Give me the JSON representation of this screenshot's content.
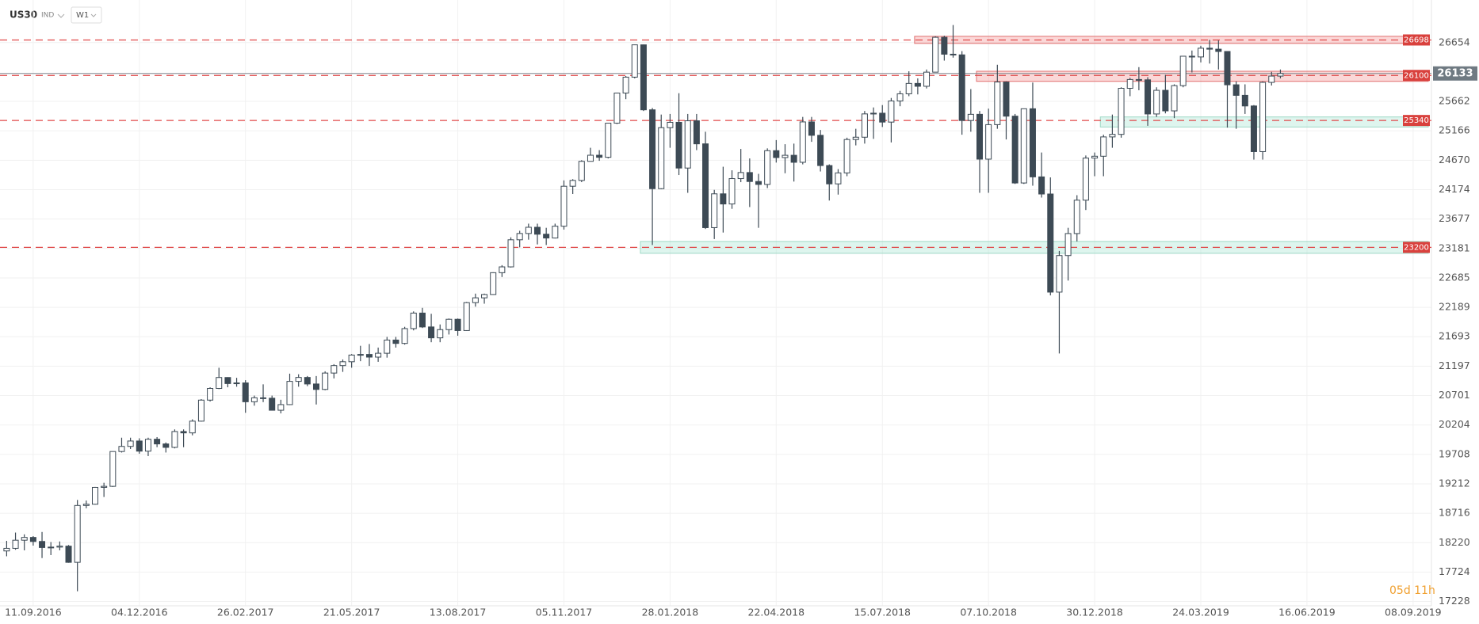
{
  "header": {
    "symbol": "US30",
    "market": "IND",
    "timeframe": "W1",
    "timer": "05d 11h"
  },
  "chart_data": {
    "type": "candlestick",
    "categories": [
      null,
      null,
      null,
      "11.09.2016",
      null,
      null,
      null,
      null,
      null,
      null,
      null,
      null,
      null,
      null,
      null,
      "04.12.2016",
      null,
      null,
      null,
      null,
      null,
      null,
      null,
      null,
      null,
      null,
      null,
      "26.02.2017",
      null,
      null,
      null,
      null,
      null,
      null,
      null,
      null,
      null,
      null,
      null,
      "21.05.2017",
      null,
      null,
      null,
      null,
      null,
      null,
      null,
      null,
      null,
      null,
      null,
      "13.08.2017",
      null,
      null,
      null,
      null,
      null,
      null,
      null,
      null,
      null,
      null,
      null,
      "05.11.2017",
      null,
      null,
      null,
      null,
      null,
      null,
      null,
      null,
      null,
      null,
      null,
      "28.01.2018",
      null,
      null,
      null,
      null,
      null,
      null,
      null,
      null,
      null,
      null,
      null,
      "22.04.2018",
      null,
      null,
      null,
      null,
      null,
      null,
      null,
      null,
      null,
      null,
      null,
      "15.07.2018",
      null,
      null,
      null,
      null,
      null,
      null,
      null,
      null,
      null,
      null,
      null,
      "07.10.2018",
      null,
      null,
      null,
      null,
      null,
      null,
      null,
      null,
      null,
      null,
      null,
      "30.12.2018",
      null,
      null,
      null,
      null,
      null,
      null,
      null,
      null,
      null,
      null,
      null,
      "24.03.2019",
      null,
      null,
      null,
      null,
      null,
      null,
      null,
      null,
      null,
      null,
      null,
      "16.06.2019",
      null,
      null,
      null,
      null,
      null,
      null,
      null,
      null,
      null,
      null,
      null,
      "08.09.2019"
    ],
    "ohlc": [
      [
        18080,
        18250,
        17990,
        18124
      ],
      [
        18124,
        18390,
        18100,
        18261
      ],
      [
        18261,
        18360,
        18090,
        18308
      ],
      [
        18308,
        18330,
        18170,
        18240
      ],
      [
        18240,
        18400,
        17960,
        18138
      ],
      [
        18138,
        18230,
        18010,
        18145
      ],
      [
        18145,
        18240,
        18090,
        18161
      ],
      [
        18161,
        18180,
        17880,
        17888
      ],
      [
        17888,
        18940,
        17400,
        18847
      ],
      [
        18847,
        18930,
        18800,
        18868
      ],
      [
        18868,
        19160,
        18860,
        19152
      ],
      [
        19152,
        19230,
        18990,
        19170
      ],
      [
        19170,
        19760,
        19160,
        19757
      ],
      [
        19757,
        19990,
        19740,
        19843
      ],
      [
        19843,
        19990,
        19800,
        19934
      ],
      [
        19934,
        19980,
        19720,
        19763
      ],
      [
        19763,
        19990,
        19680,
        19964
      ],
      [
        19964,
        20000,
        19830,
        19885
      ],
      [
        19885,
        19910,
        19740,
        19827
      ],
      [
        19827,
        20130,
        19810,
        20094
      ],
      [
        20094,
        20130,
        19830,
        20071
      ],
      [
        20071,
        20300,
        20030,
        20269
      ],
      [
        20269,
        20640,
        20260,
        20624
      ],
      [
        20624,
        20840,
        20600,
        20821
      ],
      [
        20821,
        21170,
        20810,
        21005
      ],
      [
        21005,
        21010,
        20840,
        20903
      ],
      [
        20903,
        21000,
        20850,
        20914
      ],
      [
        20914,
        20960,
        20410,
        20596
      ],
      [
        20596,
        20700,
        20530,
        20663
      ],
      [
        20663,
        20890,
        20590,
        20656
      ],
      [
        20656,
        20700,
        20450,
        20453
      ],
      [
        20453,
        20630,
        20400,
        20548
      ],
      [
        20548,
        21070,
        20540,
        20940
      ],
      [
        20940,
        21060,
        20850,
        21006
      ],
      [
        21006,
        21030,
        20860,
        20896
      ],
      [
        20896,
        21030,
        20550,
        20804
      ],
      [
        20804,
        21110,
        20790,
        21080
      ],
      [
        21080,
        21230,
        20990,
        21206
      ],
      [
        21206,
        21310,
        21100,
        21271
      ],
      [
        21271,
        21400,
        21170,
        21384
      ],
      [
        21384,
        21540,
        21280,
        21394
      ],
      [
        21394,
        21570,
        21200,
        21349
      ],
      [
        21349,
        21510,
        21270,
        21414
      ],
      [
        21414,
        21690,
        21340,
        21637
      ],
      [
        21637,
        21690,
        21510,
        21580
      ],
      [
        21580,
        21860,
        21560,
        21830
      ],
      [
        21830,
        22120,
        21800,
        22092
      ],
      [
        22092,
        22180,
        21840,
        21858
      ],
      [
        21858,
        22080,
        21600,
        21674
      ],
      [
        21674,
        21900,
        21600,
        21813
      ],
      [
        21813,
        22000,
        21730,
        21987
      ],
      [
        21987,
        22000,
        21710,
        21797
      ],
      [
        21797,
        22280,
        21790,
        22268
      ],
      [
        22268,
        22420,
        22200,
        22349
      ],
      [
        22349,
        22420,
        22250,
        22405
      ],
      [
        22405,
        22780,
        22400,
        22773
      ],
      [
        22773,
        22900,
        22700,
        22871
      ],
      [
        22871,
        23370,
        22860,
        23328
      ],
      [
        23328,
        23480,
        23200,
        23434
      ],
      [
        23434,
        23600,
        23330,
        23539
      ],
      [
        23539,
        23600,
        23250,
        23422
      ],
      [
        23422,
        23530,
        23240,
        23358
      ],
      [
        23358,
        23600,
        23350,
        23557
      ],
      [
        23557,
        24330,
        23500,
        24231
      ],
      [
        24231,
        24350,
        24100,
        24329
      ],
      [
        24329,
        24670,
        24300,
        24651
      ],
      [
        24651,
        24880,
        24650,
        24754
      ],
      [
        24754,
        24840,
        24660,
        24719
      ],
      [
        24719,
        25300,
        24700,
        25295
      ],
      [
        25295,
        25810,
        25280,
        25803
      ],
      [
        25803,
        26090,
        25700,
        26071
      ],
      [
        26071,
        26620,
        26050,
        26616
      ],
      [
        26616,
        26620,
        25500,
        25520
      ],
      [
        25520,
        25550,
        23240,
        24190
      ],
      [
        24190,
        25440,
        24180,
        25219
      ],
      [
        25219,
        25450,
        24880,
        25309
      ],
      [
        25309,
        25800,
        24420,
        24538
      ],
      [
        24538,
        25450,
        24120,
        25335
      ],
      [
        25335,
        25450,
        24840,
        24946
      ],
      [
        24946,
        25150,
        23510,
        23533
      ],
      [
        23533,
        24170,
        23340,
        24103
      ],
      [
        24103,
        24560,
        23450,
        23932
      ],
      [
        23932,
        24500,
        23850,
        24360
      ],
      [
        24360,
        24860,
        24300,
        24462
      ],
      [
        24462,
        24700,
        23880,
        24311
      ],
      [
        24311,
        24440,
        23530,
        24262
      ],
      [
        24262,
        24870,
        24200,
        24831
      ],
      [
        24831,
        25010,
        24630,
        24715
      ],
      [
        24715,
        24940,
        24450,
        24753
      ],
      [
        24753,
        24950,
        24310,
        24635
      ],
      [
        24635,
        25400,
        24600,
        25316
      ],
      [
        25316,
        25400,
        24980,
        25090
      ],
      [
        25090,
        25180,
        24480,
        24580
      ],
      [
        24580,
        24600,
        23990,
        24271
      ],
      [
        24271,
        24520,
        24090,
        24456
      ],
      [
        24456,
        25050,
        24400,
        25019
      ],
      [
        25019,
        25200,
        24920,
        25058
      ],
      [
        25058,
        25500,
        24950,
        25451
      ],
      [
        25451,
        25560,
        25030,
        25463
      ],
      [
        25463,
        25600,
        25230,
        25313
      ],
      [
        25313,
        25720,
        24970,
        25669
      ],
      [
        25669,
        25840,
        25580,
        25790
      ],
      [
        25790,
        26170,
        25750,
        25965
      ],
      [
        25965,
        26050,
        25780,
        25917
      ],
      [
        25917,
        26200,
        25880,
        26155
      ],
      [
        26155,
        26760,
        26150,
        26743
      ],
      [
        26743,
        26770,
        26350,
        26458
      ],
      [
        26458,
        26950,
        26400,
        26447
      ],
      [
        26447,
        26510,
        25100,
        25340
      ],
      [
        25340,
        25870,
        25150,
        25444
      ],
      [
        25444,
        25500,
        24120,
        24688
      ],
      [
        24688,
        25540,
        24120,
        25270
      ],
      [
        25270,
        26280,
        25200,
        25989
      ],
      [
        25989,
        26000,
        25020,
        25413
      ],
      [
        25413,
        25450,
        24270,
        24286
      ],
      [
        24286,
        25540,
        24270,
        25538
      ],
      [
        25538,
        25980,
        24240,
        24389
      ],
      [
        24389,
        24800,
        24040,
        24100
      ],
      [
        24100,
        24380,
        22390,
        22445
      ],
      [
        22445,
        23140,
        21410,
        23062
      ],
      [
        23062,
        23530,
        22640,
        23433
      ],
      [
        23433,
        24080,
        23300,
        23996
      ],
      [
        23996,
        24750,
        23830,
        24706
      ],
      [
        24706,
        24800,
        24400,
        24737
      ],
      [
        24737,
        25100,
        24400,
        25063
      ],
      [
        25063,
        25440,
        24880,
        25106
      ],
      [
        25106,
        25900,
        25050,
        25883
      ],
      [
        25883,
        26060,
        25750,
        26031
      ],
      [
        26031,
        26240,
        25850,
        26026
      ],
      [
        26026,
        26070,
        25250,
        25450
      ],
      [
        25450,
        25900,
        25400,
        25849
      ],
      [
        25849,
        26110,
        25460,
        25502
      ],
      [
        25502,
        25950,
        25380,
        25928
      ],
      [
        25928,
        26430,
        25900,
        26424
      ],
      [
        26424,
        26520,
        26150,
        26412
      ],
      [
        26412,
        26600,
        26320,
        26559
      ],
      [
        26559,
        26700,
        26300,
        26543
      ],
      [
        26543,
        26690,
        26200,
        26504
      ],
      [
        26504,
        26510,
        25220,
        25942
      ],
      [
        25942,
        26000,
        25200,
        25764
      ],
      [
        25764,
        25950,
        25450,
        25585
      ],
      [
        25585,
        25600,
        24680,
        24815
      ],
      [
        24815,
        26000,
        24680,
        25983
      ],
      [
        25983,
        26160,
        25930,
        26089
      ],
      [
        26089,
        26200,
        26050,
        26133
      ],
      null,
      null,
      null,
      null,
      null,
      null,
      null,
      null,
      null,
      null,
      null,
      null,
      null,
      null,
      null
    ],
    "up_color": "#ffffff",
    "down_color": "#3d4a55",
    "ylim": [
      17155,
      27292
    ],
    "yticks": [
      26654,
      25662,
      25166,
      24670,
      24174,
      23677,
      23181,
      22685,
      22189,
      21693,
      21197,
      20701,
      20204,
      19708,
      19212,
      18716,
      18220,
      17724,
      17228
    ],
    "grid": true,
    "levels": [
      {
        "value": 26698,
        "lo": 26640,
        "hi": 26760,
        "start": 103,
        "color": "red"
      },
      {
        "value": 26100,
        "lo": 26000,
        "hi": 26170,
        "start": 110,
        "color": "red"
      },
      {
        "value": 25340,
        "lo": 25230,
        "hi": 25400,
        "start": 124,
        "color": "green"
      },
      {
        "value": 23200,
        "lo": 23100,
        "hi": 23300,
        "start": 72,
        "color": "green"
      }
    ],
    "last": 26133
  }
}
